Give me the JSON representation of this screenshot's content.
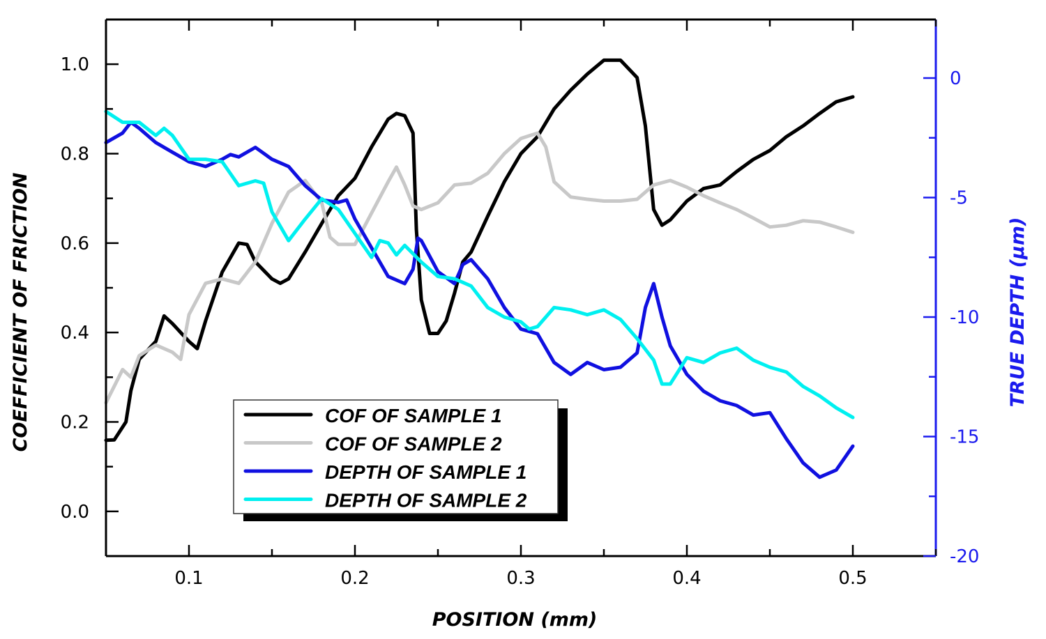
{
  "chart_data": {
    "type": "line",
    "title": "",
    "xlabel": "POSITION (mm)",
    "ylabel": "COEFFICIENT OF FRICTION",
    "y2label": "TRUE DEPTH (μm)",
    "xlim": [
      0.05,
      0.55
    ],
    "ylim": [
      -0.1,
      1.1
    ],
    "y2lim": [
      -20,
      2.45
    ],
    "xticks": [
      0.1,
      0.2,
      0.3,
      0.4,
      0.5
    ],
    "xtick_labels": [
      "0.1",
      "0.2",
      "0.3",
      "0.4",
      "0.5"
    ],
    "yticks": [
      0.0,
      0.2,
      0.4,
      0.6,
      0.8,
      1.0
    ],
    "ytick_labels": [
      "0.0",
      "0.2",
      "0.4",
      "0.6",
      "0.8",
      "1.0"
    ],
    "y2ticks": [
      0,
      -5,
      -10,
      -15,
      -20
    ],
    "y2tick_labels": [
      "0",
      "-5",
      "-10",
      "-15",
      "-20"
    ],
    "grid": false,
    "legend_placement": "lower-left",
    "colors": {
      "axis_right": "#1a1aee"
    },
    "series": [
      {
        "name": "COF OF SAMPLE 1",
        "axis": "left",
        "color": "#000000",
        "x": [
          0.05,
          0.055,
          0.062,
          0.065,
          0.07,
          0.08,
          0.085,
          0.09,
          0.1,
          0.105,
          0.11,
          0.12,
          0.13,
          0.135,
          0.14,
          0.15,
          0.155,
          0.16,
          0.17,
          0.18,
          0.19,
          0.2,
          0.21,
          0.22,
          0.225,
          0.23,
          0.235,
          0.237,
          0.24,
          0.245,
          0.25,
          0.255,
          0.26,
          0.265,
          0.27,
          0.28,
          0.29,
          0.3,
          0.31,
          0.32,
          0.33,
          0.34,
          0.35,
          0.36,
          0.37,
          0.375,
          0.38,
          0.385,
          0.39,
          0.4,
          0.41,
          0.42,
          0.43,
          0.44,
          0.45,
          0.46,
          0.47,
          0.48,
          0.49,
          0.5
        ],
        "y": [
          0.159,
          0.16,
          0.2,
          0.27,
          0.34,
          0.38,
          0.437,
          0.42,
          0.38,
          0.364,
          0.426,
          0.535,
          0.6,
          0.597,
          0.558,
          0.52,
          0.51,
          0.52,
          0.58,
          0.644,
          0.706,
          0.745,
          0.815,
          0.877,
          0.89,
          0.885,
          0.846,
          0.63,
          0.473,
          0.398,
          0.398,
          0.426,
          0.488,
          0.558,
          0.58,
          0.66,
          0.737,
          0.8,
          0.838,
          0.9,
          0.942,
          0.978,
          1.009,
          1.009,
          0.97,
          0.862,
          0.675,
          0.64,
          0.652,
          0.694,
          0.722,
          0.73,
          0.76,
          0.787,
          0.807,
          0.838,
          0.862,
          0.89,
          0.916,
          0.927
        ]
      },
      {
        "name": "COF OF SAMPLE 2",
        "axis": "left",
        "color": "#c8c8c8",
        "x": [
          0.05,
          0.06,
          0.065,
          0.07,
          0.08,
          0.09,
          0.095,
          0.1,
          0.11,
          0.12,
          0.13,
          0.14,
          0.15,
          0.16,
          0.17,
          0.18,
          0.185,
          0.19,
          0.2,
          0.21,
          0.22,
          0.225,
          0.23,
          0.235,
          0.24,
          0.25,
          0.26,
          0.27,
          0.28,
          0.29,
          0.3,
          0.31,
          0.315,
          0.32,
          0.33,
          0.34,
          0.35,
          0.36,
          0.37,
          0.38,
          0.39,
          0.4,
          0.41,
          0.42,
          0.43,
          0.44,
          0.45,
          0.46,
          0.47,
          0.48,
          0.49,
          0.5
        ],
        "y": [
          0.243,
          0.317,
          0.3,
          0.348,
          0.372,
          0.356,
          0.34,
          0.44,
          0.51,
          0.52,
          0.51,
          0.558,
          0.644,
          0.714,
          0.74,
          0.69,
          0.613,
          0.597,
          0.597,
          0.667,
          0.737,
          0.77,
          0.73,
          0.683,
          0.675,
          0.69,
          0.73,
          0.734,
          0.756,
          0.8,
          0.834,
          0.846,
          0.815,
          0.737,
          0.703,
          0.698,
          0.694,
          0.694,
          0.698,
          0.73,
          0.74,
          0.725,
          0.706,
          0.69,
          0.675,
          0.656,
          0.636,
          0.64,
          0.65,
          0.647,
          0.636,
          0.624
        ]
      },
      {
        "name": "DEPTH OF SAMPLE 1",
        "axis": "right",
        "color": "#1010e0",
        "x": [
          0.05,
          0.06,
          0.065,
          0.07,
          0.08,
          0.09,
          0.1,
          0.11,
          0.12,
          0.125,
          0.13,
          0.14,
          0.15,
          0.16,
          0.17,
          0.18,
          0.19,
          0.195,
          0.2,
          0.21,
          0.22,
          0.23,
          0.235,
          0.238,
          0.24,
          0.25,
          0.26,
          0.265,
          0.27,
          0.28,
          0.29,
          0.3,
          0.31,
          0.32,
          0.33,
          0.34,
          0.35,
          0.36,
          0.37,
          0.375,
          0.38,
          0.385,
          0.39,
          0.4,
          0.41,
          0.42,
          0.43,
          0.44,
          0.45,
          0.46,
          0.47,
          0.48,
          0.49,
          0.5
        ],
        "y": [
          -2.7,
          -2.3,
          -1.85,
          -2.1,
          -2.7,
          -3.1,
          -3.5,
          -3.7,
          -3.4,
          -3.2,
          -3.3,
          -2.9,
          -3.4,
          -3.7,
          -4.5,
          -5.1,
          -5.2,
          -5.1,
          -5.9,
          -7.1,
          -8.3,
          -8.6,
          -8.0,
          -6.7,
          -6.8,
          -8.1,
          -8.6,
          -7.8,
          -7.6,
          -8.4,
          -9.6,
          -10.5,
          -10.7,
          -11.9,
          -12.4,
          -11.9,
          -12.2,
          -12.1,
          -11.5,
          -9.6,
          -8.6,
          -10.0,
          -11.2,
          -12.4,
          -13.1,
          -13.5,
          -13.7,
          -14.1,
          -14.0,
          -15.1,
          -16.1,
          -16.7,
          -16.4,
          -15.4
        ]
      },
      {
        "name": "DEPTH OF SAMPLE 2",
        "axis": "right",
        "color": "#00f0f0",
        "x": [
          0.05,
          0.06,
          0.07,
          0.08,
          0.085,
          0.09,
          0.1,
          0.11,
          0.12,
          0.13,
          0.14,
          0.145,
          0.15,
          0.16,
          0.17,
          0.18,
          0.19,
          0.2,
          0.21,
          0.215,
          0.22,
          0.225,
          0.23,
          0.24,
          0.25,
          0.26,
          0.27,
          0.28,
          0.29,
          0.3,
          0.305,
          0.31,
          0.32,
          0.33,
          0.34,
          0.35,
          0.36,
          0.37,
          0.38,
          0.385,
          0.39,
          0.4,
          0.41,
          0.42,
          0.43,
          0.44,
          0.45,
          0.46,
          0.47,
          0.48,
          0.49,
          0.5
        ],
        "y": [
          -1.4,
          -1.85,
          -1.85,
          -2.4,
          -2.1,
          -2.4,
          -3.4,
          -3.4,
          -3.5,
          -4.5,
          -4.3,
          -4.4,
          -5.6,
          -6.8,
          -5.9,
          -5.05,
          -5.5,
          -6.5,
          -7.5,
          -6.8,
          -6.9,
          -7.4,
          -7.0,
          -7.7,
          -8.3,
          -8.4,
          -8.7,
          -9.6,
          -10.0,
          -10.2,
          -10.5,
          -10.4,
          -9.6,
          -9.7,
          -9.9,
          -9.7,
          -10.1,
          -10.9,
          -11.8,
          -12.8,
          -12.8,
          -11.7,
          -11.9,
          -11.5,
          -11.3,
          -11.8,
          -12.1,
          -12.3,
          -12.9,
          -13.3,
          -13.8,
          -14.2
        ]
      }
    ]
  }
}
